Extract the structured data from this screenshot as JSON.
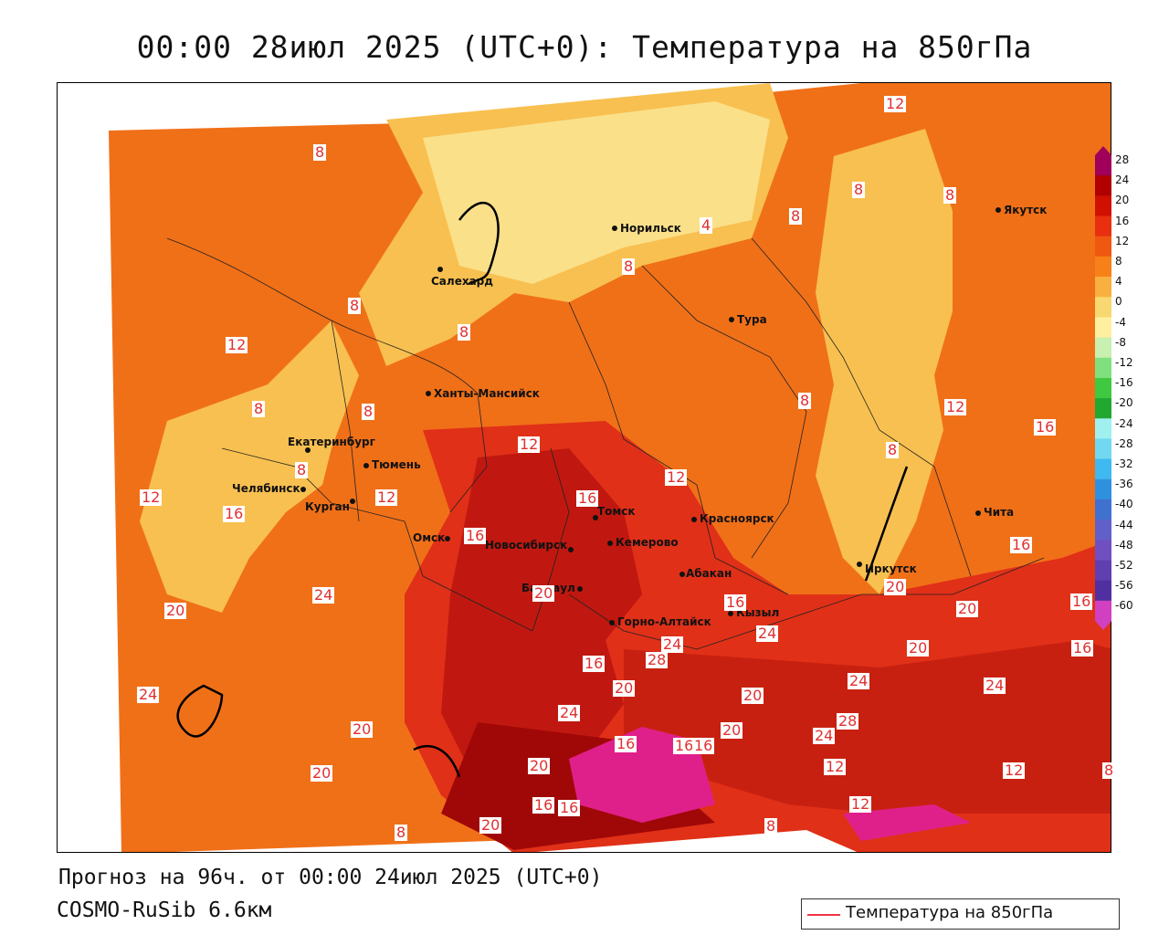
{
  "title": "00:00 28июл 2025 (UTC+0): Температура на 850гПа",
  "footer": {
    "forecast": "Прогноз на 96ч. от 00:00 24июл 2025 (UTC+0)",
    "model": "COSMO-RuSib 6.6км"
  },
  "legend": {
    "label": "Температура на 850гПа",
    "line_color": "#e84040"
  },
  "colorbar": {
    "ticks": [
      "28",
      "24",
      "20",
      "16",
      "12",
      "8",
      "4",
      "0",
      "-4",
      "-8",
      "-12",
      "-16",
      "-20",
      "-24",
      "-28",
      "-32",
      "-36",
      "-40",
      "-44",
      "-48",
      "-52",
      "-56",
      "-60"
    ],
    "colors": [
      "#a0005a",
      "#b00000",
      "#d01000",
      "#e83010",
      "#f05810",
      "#f88018",
      "#f8b040",
      "#f8d870",
      "#fff0a0",
      "#c8f0b0",
      "#80e080",
      "#40c840",
      "#20a830",
      "#a0f0f0",
      "#70d8f0",
      "#40b8f0",
      "#3090e0",
      "#4070d0",
      "#6060c8",
      "#7050c0",
      "#6040b0",
      "#5030a0",
      "#d040c0"
    ]
  },
  "cities": [
    {
      "name": "Норильск"
    },
    {
      "name": "Якутск"
    },
    {
      "name": "Салехард"
    },
    {
      "name": "Тура"
    },
    {
      "name": "Ханты-Мансийск"
    },
    {
      "name": "Екатеринбург"
    },
    {
      "name": "Тюмень"
    },
    {
      "name": "Челябинск"
    },
    {
      "name": "Курган"
    },
    {
      "name": "Омск"
    },
    {
      "name": "Новосибирск"
    },
    {
      "name": "Томск"
    },
    {
      "name": "Кемерово"
    },
    {
      "name": "Красноярск"
    },
    {
      "name": "Барнаул"
    },
    {
      "name": "Абакан"
    },
    {
      "name": "Горно-Алтайск"
    },
    {
      "name": "Кызыл"
    },
    {
      "name": "Иркутск"
    },
    {
      "name": "Чита"
    }
  ],
  "isoline_labels": [
    "8",
    "12",
    "8",
    "8",
    "4",
    "8",
    "8",
    "8",
    "8",
    "12",
    "8",
    "8",
    "8",
    "12",
    "16",
    "12",
    "12",
    "8",
    "8",
    "12",
    "16",
    "12",
    "16",
    "16",
    "16",
    "20",
    "20",
    "16",
    "20",
    "24",
    "20",
    "16",
    "24",
    "28",
    "24",
    "16",
    "20",
    "20",
    "16",
    "24",
    "24",
    "20",
    "20",
    "24",
    "24",
    "28",
    "24",
    "16",
    "16",
    "16",
    "20",
    "20",
    "12",
    "12",
    "16",
    "16",
    "20",
    "8",
    "20",
    "8",
    "12",
    "8",
    "8",
    "12"
  ]
}
